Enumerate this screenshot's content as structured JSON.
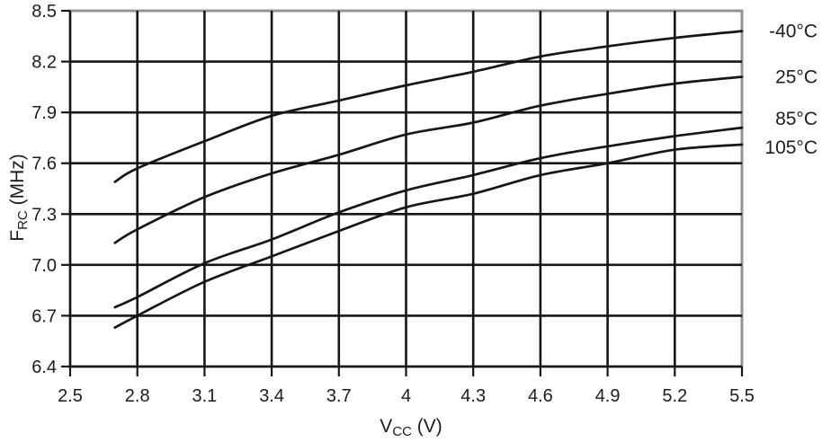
{
  "chart_data": {
    "type": "line",
    "title": "",
    "xlabel": {
      "main": "V",
      "sub": "CC",
      "rest": " (V)"
    },
    "ylabel": {
      "main": "F",
      "sub": "RC",
      "rest": " (MHz)"
    },
    "xlim": [
      2.5,
      5.5
    ],
    "ylim": [
      6.4,
      8.5
    ],
    "grid": "on",
    "legend_position": "right-outside-at-line-ends",
    "x_tick_labels": [
      "2.5",
      "2.8",
      "3.1",
      "3.4",
      "3.7",
      "4",
      "4.3",
      "4.6",
      "4.9",
      "5.2",
      "5.5"
    ],
    "x_tick_values": [
      2.5,
      2.8,
      3.1,
      3.4,
      3.7,
      4.0,
      4.3,
      4.6,
      4.9,
      5.2,
      5.5
    ],
    "y_tick_labels": [
      "6.4",
      "6.7",
      "7.0",
      "7.3",
      "7.6",
      "7.9",
      "8.2",
      "8.5"
    ],
    "y_tick_values": [
      6.4,
      6.7,
      7.0,
      7.3,
      7.6,
      7.9,
      8.2,
      8.5
    ],
    "x": [
      2.7,
      2.8,
      3.1,
      3.4,
      3.7,
      4.0,
      4.3,
      4.6,
      4.9,
      5.2,
      5.5
    ],
    "series": [
      {
        "name": "-40°C",
        "values": [
          7.49,
          7.57,
          7.73,
          7.88,
          7.97,
          8.06,
          8.14,
          8.23,
          8.29,
          8.34,
          8.38
        ]
      },
      {
        "name": "25°C",
        "values": [
          7.13,
          7.21,
          7.4,
          7.54,
          7.65,
          7.77,
          7.84,
          7.94,
          8.01,
          8.07,
          8.11
        ]
      },
      {
        "name": "85°C",
        "values": [
          6.75,
          6.81,
          7.01,
          7.15,
          7.31,
          7.44,
          7.53,
          7.63,
          7.7,
          7.76,
          7.81
        ]
      },
      {
        "name": "105°C",
        "values": [
          6.63,
          6.7,
          6.9,
          7.05,
          7.2,
          7.34,
          7.42,
          7.53,
          7.6,
          7.68,
          7.71
        ]
      }
    ],
    "label_dy": [
      0,
      0,
      -10,
      3
    ],
    "line_color": "#161616",
    "gridline_color": "#161616",
    "frame_color": "#949494",
    "text_color": "#1c1c1c"
  }
}
